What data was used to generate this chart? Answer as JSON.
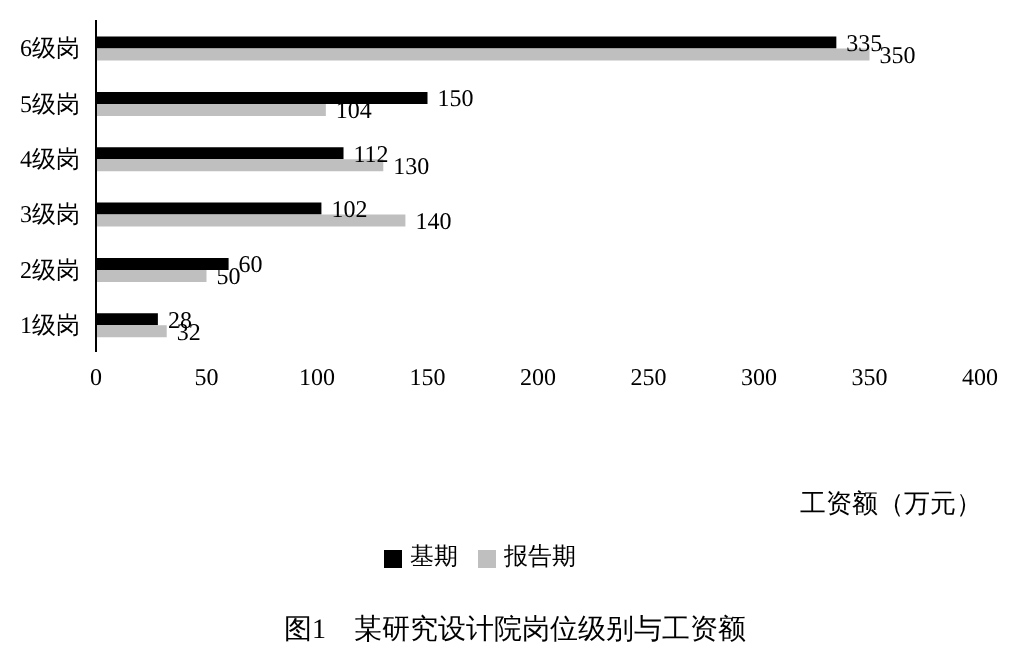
{
  "chart_data": {
    "type": "bar",
    "orientation": "horizontal",
    "title": "图1　某研究设计院岗位级别与工资额",
    "xlabel": "工资额（万元）",
    "categories": [
      "6级岗",
      "5级岗",
      "4级岗",
      "3级岗",
      "2级岗",
      "1级岗"
    ],
    "series": [
      {
        "name": "基期",
        "color": "#000000",
        "values": [
          335,
          150,
          112,
          102,
          60,
          28
        ]
      },
      {
        "name": "报告期",
        "color": "#bfbfbf",
        "values": [
          350,
          104,
          130,
          140,
          50,
          32
        ]
      }
    ],
    "xlim": [
      0,
      400
    ],
    "xticks": [
      0,
      50,
      100,
      150,
      200,
      250,
      300,
      350,
      400
    ],
    "data_labels": true,
    "legend": "bottom",
    "grid": false
  }
}
